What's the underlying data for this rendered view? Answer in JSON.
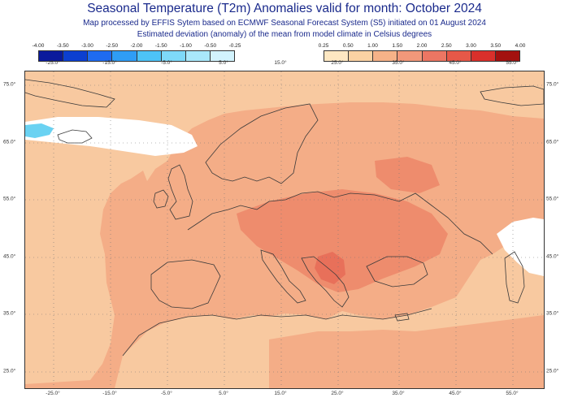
{
  "header": {
    "title": "Seasonal Temperature (T2m) Anomalies valid for month: October 2024",
    "subtitle_1": "Map processed by EFFIS Sytem based on ECMWF Seasonal Forecast System (S5) initiated on 01 August 2024",
    "subtitle_2": "Estimated deviation (anomaly) of the mean from model climate in Celsius degrees"
  },
  "legend_negative": {
    "labels": [
      "-4.00",
      "-3.50",
      "-3.00",
      "-2.50",
      "-2.00",
      "-1.50",
      "-1.00",
      "-0.50",
      "-0.25"
    ],
    "colors": [
      "#0a1a9c",
      "#0c3fd0",
      "#1f6bf0",
      "#2f9df5",
      "#4dc3f7",
      "#7ed9f9",
      "#a9e8fb",
      "#d2f3fd"
    ]
  },
  "legend_positive": {
    "labels": [
      "0.25",
      "0.50",
      "1.00",
      "1.50",
      "2.00",
      "2.50",
      "3.00",
      "3.50",
      "4.00"
    ],
    "colors": [
      "#fde7c2",
      "#fbd2a3",
      "#f6b288",
      "#f2987a",
      "#ec7663",
      "#e65848",
      "#d9302b",
      "#a3110f"
    ]
  },
  "axes": {
    "lon_labels": [
      "-25.0°",
      "-15.0°",
      "-5.0°",
      "5.0°",
      "15.0°",
      "25.0°",
      "35.0°",
      "45.0°",
      "55.0°"
    ],
    "lat_labels": [
      "75.0°",
      "65.0°",
      "55.0°",
      "45.0°",
      "35.0°",
      "25.0°"
    ]
  },
  "map_colors": {
    "sea_base": "#f8c9a0",
    "land_base": "#f4ad87",
    "warm_core": "#ee8c6d",
    "hot_spot": "#e8705a",
    "cold_patch": "#ffffff",
    "cold_core": "#6ad2f2",
    "outline": "#3a3a3a",
    "grid_dot": "#777777"
  }
}
